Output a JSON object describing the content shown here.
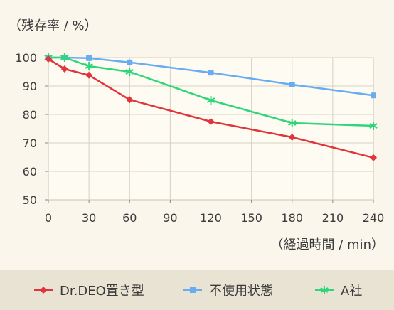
{
  "chart_data": {
    "type": "line",
    "ylabel": "（残存率 / %）",
    "xlabel": "（経過時間 / min）",
    "xlim": [
      0,
      240
    ],
    "ylim": [
      50,
      100
    ],
    "x_ticks": [
      0,
      30,
      60,
      90,
      120,
      150,
      180,
      210,
      240
    ],
    "y_ticks": [
      50,
      60,
      70,
      80,
      90,
      100
    ],
    "grid": true,
    "legend_position": "bottom",
    "series": [
      {
        "name": "Dr.DEO置き型",
        "color": "#e0353c",
        "marker": "diamond",
        "x": [
          0,
          12,
          30,
          60,
          120,
          180,
          240
        ],
        "values": [
          99.5,
          96,
          93.8,
          85.2,
          77.5,
          72,
          64.8
        ]
      },
      {
        "name": "不使用状態",
        "color": "#6aacf2",
        "marker": "square",
        "x": [
          0,
          12,
          30,
          60,
          120,
          180,
          240
        ],
        "values": [
          100,
          100,
          99.8,
          98.3,
          94.7,
          90.5,
          86.7
        ]
      },
      {
        "name": "A社",
        "color": "#2fd57a",
        "marker": "asterisk",
        "x": [
          0,
          12,
          30,
          60,
          120,
          180,
          240
        ],
        "values": [
          100,
          100,
          97,
          95,
          85,
          77,
          76
        ]
      }
    ]
  }
}
